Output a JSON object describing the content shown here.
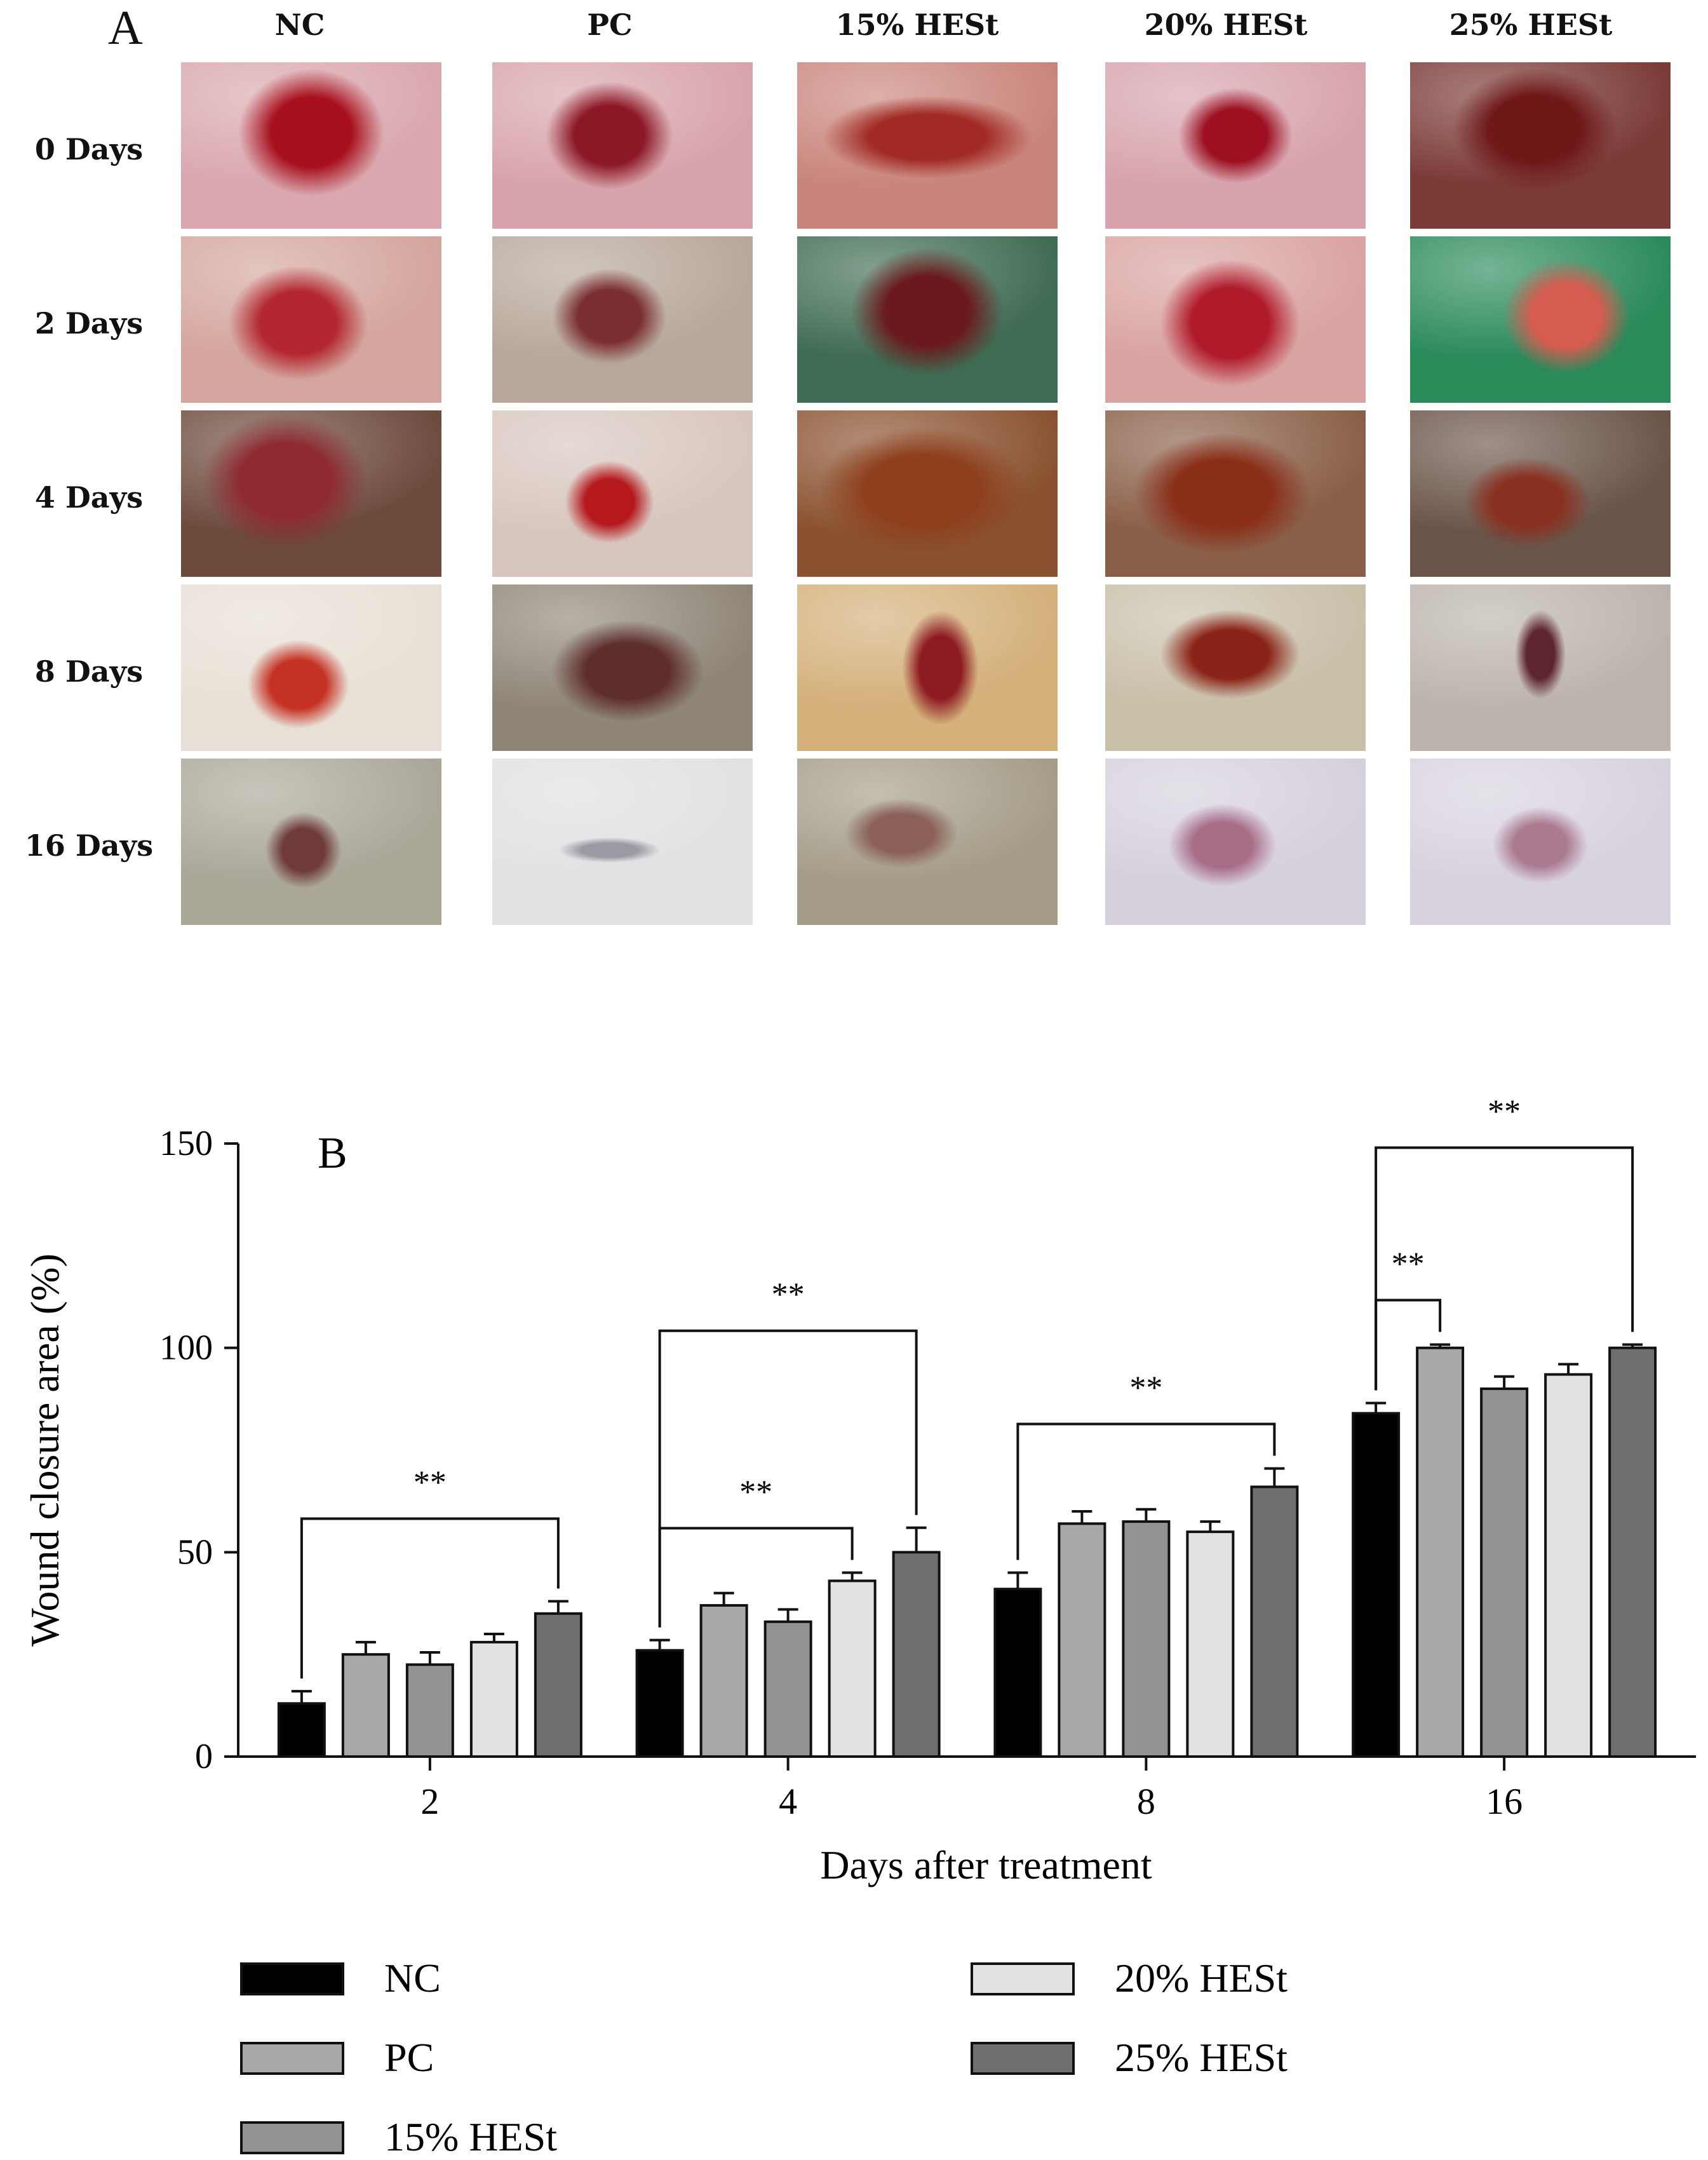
{
  "panel_a": {
    "letter": "A",
    "columns": [
      "NC",
      "PC",
      "15% HESt",
      "20% HESt",
      "25% HESt"
    ],
    "rows": [
      "0 Days",
      "2 Days",
      "4 Days",
      "8 Days",
      "16 Days"
    ]
  },
  "chart_data": {
    "type": "bar",
    "panel_letter": "B",
    "xlabel": "Days after treatment",
    "ylabel": "Wound closure area (%)",
    "ylim": [
      0,
      150
    ],
    "yticks": [
      0,
      50,
      100,
      150
    ],
    "categories": [
      "2",
      "4",
      "8",
      "16"
    ],
    "series": [
      {
        "name": "NC",
        "color": "#000000",
        "values": [
          13,
          26,
          41,
          84
        ],
        "errors": [
          3,
          2.5,
          4,
          2.5
        ]
      },
      {
        "name": "PC",
        "color": "#a8a8a8",
        "values": [
          25,
          37,
          57,
          100
        ],
        "errors": [
          3,
          3,
          3,
          0.8
        ]
      },
      {
        "name": "15% HESt",
        "color": "#939393",
        "values": [
          22.5,
          33,
          57.5,
          90
        ],
        "errors": [
          3,
          3,
          3,
          3
        ]
      },
      {
        "name": "20% HESt",
        "color": "#e2e2e2",
        "values": [
          28,
          43,
          55,
          93.5
        ],
        "errors": [
          2,
          2,
          2.5,
          2.5
        ]
      },
      {
        "name": "25% HESt",
        "color": "#6f6f6f",
        "values": [
          35,
          50,
          66,
          100
        ],
        "errors": [
          3,
          6,
          4.5,
          0.8
        ]
      }
    ],
    "significance": [
      {
        "category": "2",
        "from": 0,
        "to": 4,
        "label": "**",
        "level": 1
      },
      {
        "category": "4",
        "from": 0,
        "to": 3,
        "label": "**",
        "level": 1
      },
      {
        "category": "4",
        "from": 0,
        "to": 4,
        "label": "**",
        "level": 2
      },
      {
        "category": "8",
        "from": 0,
        "to": 4,
        "label": "**",
        "level": 1
      },
      {
        "category": "16",
        "from": 0,
        "to": 1,
        "label": "**",
        "level": 1
      },
      {
        "category": "16",
        "from": 0,
        "to": 4,
        "label": "**",
        "level": 2
      }
    ],
    "legend_position": "bottom"
  }
}
